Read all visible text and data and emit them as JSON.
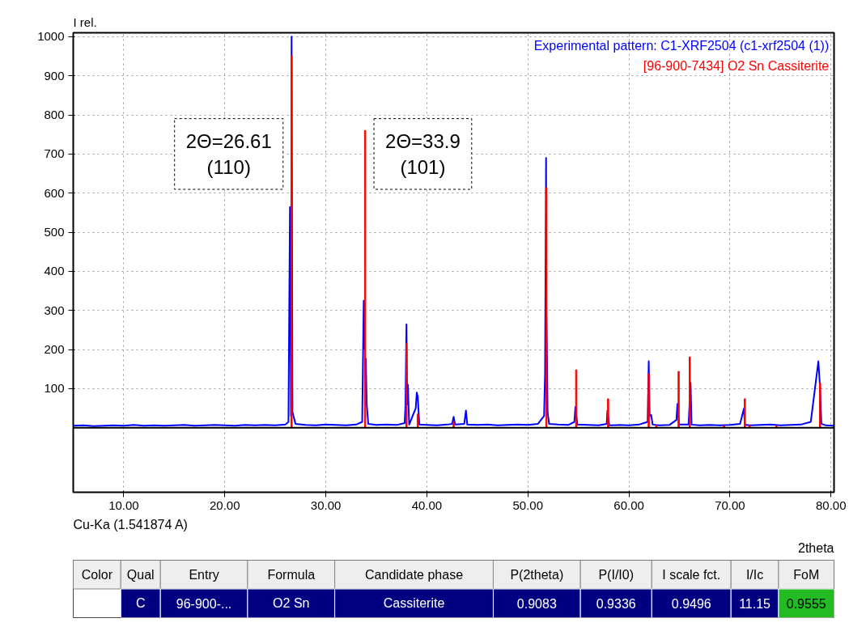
{
  "chart_data": [
    {
      "type": "line",
      "ylabel": "I rel.",
      "xlabel": "2theta",
      "xlim": [
        5,
        80.3
      ],
      "ylim": [
        -165,
        1010
      ],
      "xticks": [
        {
          "value": 10,
          "label": "10.00"
        },
        {
          "value": 20,
          "label": "20.00"
        },
        {
          "value": 30,
          "label": "30.00"
        },
        {
          "value": 40,
          "label": "40.00"
        },
        {
          "value": 50,
          "label": "50.00"
        },
        {
          "value": 60,
          "label": "60.00"
        },
        {
          "value": 70,
          "label": "70.00"
        },
        {
          "value": 80,
          "label": "80.00"
        }
      ],
      "yticks": [
        100,
        200,
        300,
        400,
        500,
        600,
        700,
        800,
        900,
        1000
      ],
      "grid": true,
      "legend": "top right",
      "ref_lines": [
        {
          "axis": "y",
          "value": 0,
          "color": "#000000"
        }
      ],
      "annotations": [
        "2Θ=26.61\n(110)",
        "2Θ=33.9\n(101)",
        "Cu-Ka (1.541874 A)"
      ],
      "series": [
        {
          "name": "Experimental pattern: C1-XRF2504 (c1-xrf2504 (1))",
          "color": "#0000ff",
          "x": [
            5,
            6,
            7,
            8,
            9,
            10,
            11,
            12,
            13,
            14,
            15,
            16,
            17,
            18,
            19,
            20,
            21,
            22,
            23,
            24,
            25,
            26,
            26.3,
            26.45,
            26.55,
            26.61,
            26.7,
            26.8,
            27.0,
            28,
            29,
            30,
            31,
            32,
            33,
            33.6,
            33.75,
            33.8,
            33.84,
            33.95,
            34.05,
            34.2,
            35,
            36,
            37,
            37.8,
            37.88,
            37.98,
            38.05,
            38.12,
            38.25,
            38.9,
            39.0,
            39.1,
            39.25,
            40,
            41,
            42,
            42.5,
            42.65,
            42.8,
            43.7,
            43.87,
            44.0,
            45,
            46,
            47,
            48,
            49,
            50,
            51,
            51.6,
            51.7,
            51.8,
            51.83,
            51.9,
            51.95,
            52.1,
            53,
            54,
            54.6,
            54.7,
            54.9,
            56,
            57,
            57.8,
            57.87,
            58.05,
            59,
            60,
            61,
            61.85,
            61.96,
            62.05,
            62.2,
            62.35,
            63,
            64,
            64.7,
            64.8,
            64.95,
            65.9,
            66.1,
            66.2,
            67,
            68,
            69,
            70,
            71,
            71.38,
            71.47,
            71.6,
            72,
            73,
            74,
            75,
            76,
            77,
            78,
            78.75,
            78.9,
            79.05,
            79.5,
            80.3
          ],
          "values": [
            5,
            6,
            4,
            5,
            6,
            5,
            7,
            5,
            6,
            5,
            6,
            7,
            5,
            6,
            7,
            6,
            5,
            7,
            6,
            7,
            6,
            8,
            15,
            564,
            30,
            1000,
            40,
            30,
            10,
            7,
            6,
            8,
            7,
            6,
            8,
            15,
            325,
            200,
            null,
            178,
            60,
            10,
            7,
            8,
            7,
            12,
            55,
            264,
            60,
            110,
            8,
            50,
            90,
            80,
            8,
            7,
            6,
            8,
            10,
            28,
            8,
            10,
            44,
            8,
            7,
            8,
            6,
            7,
            8,
            7,
            10,
            30,
            140,
            690,
            300,
            160,
            40,
            10,
            8,
            7,
            15,
            53,
            8,
            7,
            6,
            10,
            44,
            6,
            7,
            6,
            8,
            15,
            170,
            30,
            33,
            8,
            6,
            7,
            20,
            61,
            8,
            8,
            115,
            8,
            6,
            7,
            6,
            7,
            10,
            49,
            8,
            7,
            6,
            7,
            8,
            6,
            7,
            8,
            15,
            170,
            110,
            10,
            6,
            5
          ]
        },
        {
          "name": "[96-900-7434] O2 Sn Cassiterite",
          "color": "#ff0000",
          "type": "bar",
          "x": [
            26.61,
            33.89,
            37.98,
            39.1,
            42.65,
            51.83,
            54.78,
            57.94,
            61.96,
            62.71,
            64.92,
            66.02,
            69.41,
            71.47,
            71.94,
            74.6,
            78.92
          ],
          "values": [
            951,
            760,
            215,
            35,
            15,
            614,
            148,
            74,
            138,
            6,
            144,
            181,
            5,
            74,
            6,
            5,
            115
          ]
        }
      ]
    },
    {
      "type": "other",
      "categories": [
        "Color",
        "Qual",
        "Entry",
        "Formula",
        "Candidate phase",
        "P(2theta)",
        "P(I/I0)",
        "I scale fct.",
        "I/Ic",
        "FoM"
      ],
      "annotations": [
        null,
        "C",
        "96-900-...",
        "O2 Sn",
        "Cassiterite",
        "0.9083",
        "0.9336",
        "0.9496",
        "11.15",
        "0.9555"
      ]
    }
  ]
}
